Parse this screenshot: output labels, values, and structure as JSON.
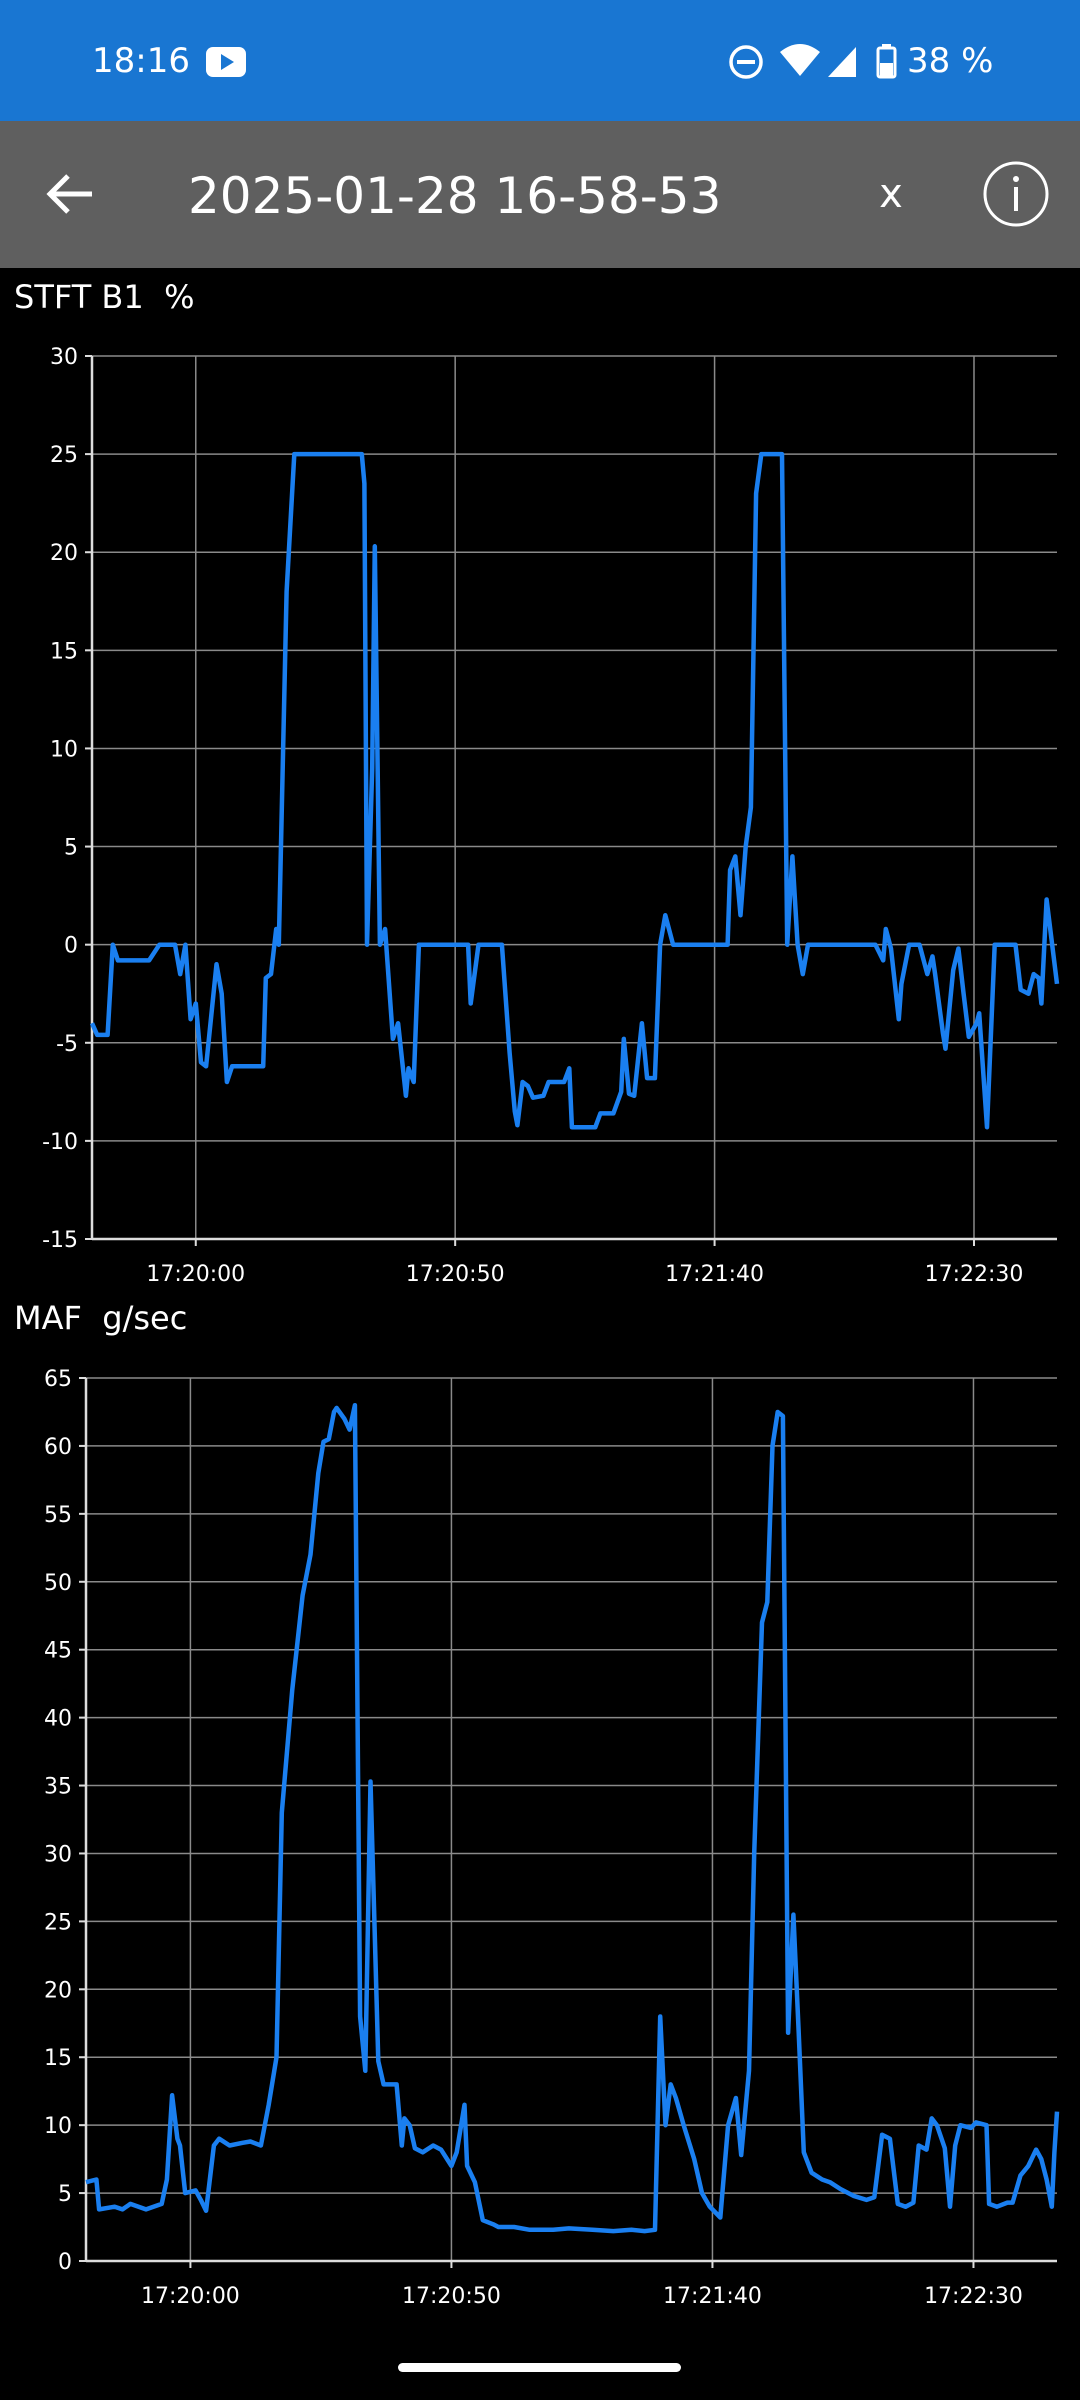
{
  "status_bar": {
    "time": "18:16",
    "battery": "38 %"
  },
  "toolbar": {
    "title": "2025-01-28 16-58-53",
    "close": "x"
  },
  "chart_data": [
    {
      "type": "line",
      "title": "STFT B1  %",
      "x": [
        62380,
        62381,
        62383,
        62384,
        62385,
        62391,
        62393,
        62396,
        62397,
        62398,
        62399,
        62400,
        62401,
        62402,
        62404,
        62405,
        62406,
        62407,
        62413,
        62413.5,
        62414.5,
        62415.5,
        62416,
        62417.5,
        62419,
        62432,
        62432.5,
        62433,
        62434,
        62434.5,
        62435.5,
        62436.5,
        62438,
        62439,
        62440.5,
        62441,
        62442,
        62443,
        62452.5,
        62453,
        62454.5,
        62459,
        62460.5,
        62461.5,
        62462,
        62463,
        62464,
        62465,
        62467,
        62468,
        62471,
        62472,
        62472.5,
        62477,
        62478,
        62480.5,
        62482,
        62482.5,
        62483.5,
        62484.5,
        62486,
        62487,
        62488.5,
        62489.5,
        62490.5,
        62492,
        62502.5,
        62503,
        62504,
        62505,
        62506,
        62507,
        62508,
        62509,
        62513,
        62514,
        62515,
        62516,
        62517,
        62518,
        62531,
        62532.5,
        62533,
        62534,
        62535.5,
        62536,
        62537.5,
        62539.5,
        62541,
        62542,
        62542.5,
        62544,
        62544.5,
        62546,
        62547,
        62548,
        62549,
        62550.5,
        62551,
        62552.5,
        62554,
        62558,
        62559,
        62560.5,
        62561.5,
        62562.5,
        62563,
        62564,
        62566
      ],
      "series": [
        {
          "color": "#1a7ff0",
          "values": [
            -4,
            -4.6,
            -4.6,
            0,
            -0.8,
            -0.8,
            0,
            0,
            -1.5,
            0,
            -3.8,
            -3,
            -6,
            -6.2,
            -1,
            -2.5,
            -7,
            -6.2,
            -6.2,
            -1.7,
            -1.5,
            0.8,
            0,
            18,
            25,
            25,
            23.5,
            0,
            9,
            20.3,
            0,
            0.8,
            -4.8,
            -4,
            -7.7,
            -6.3,
            -7,
            0,
            0,
            -3,
            0,
            0,
            -5.5,
            -8.5,
            -9.2,
            -7,
            -7.2,
            -7.8,
            -7.7,
            -7,
            -7,
            -6.3,
            -9.3,
            -9.3,
            -8.6,
            -8.6,
            -7.5,
            -4.8,
            -7.6,
            -7.7,
            -4,
            -6.8,
            -6.8,
            0,
            1.5,
            0,
            0,
            3.8,
            4.5,
            1.5,
            5,
            7,
            23,
            25,
            25,
            0,
            4.5,
            0,
            -1.5,
            0,
            0,
            -0.8,
            0.8,
            -0.2,
            -3.8,
            -2,
            0,
            0,
            -1.5,
            -0.6,
            -1.5,
            -4.5,
            -5.3,
            -1.3,
            -0.2,
            -2.5,
            -4.7,
            -4,
            -3.5,
            -9.3,
            0,
            0,
            -2.3,
            -2.5,
            -1.5,
            -1.7,
            -3,
            2.3,
            -2
          ]
        }
      ],
      "xlim": [
        62380,
        62566
      ],
      "xticks": [
        {
          "value": 62400,
          "label": "17:20:00"
        },
        {
          "value": 62450,
          "label": "17:20:50"
        },
        {
          "value": 62500,
          "label": "17:21:40"
        },
        {
          "value": 62550,
          "label": "17:22:30"
        }
      ],
      "ylim": [
        -15,
        30
      ],
      "yticks": [
        -15,
        -10,
        -5,
        0,
        5,
        10,
        15,
        20,
        25,
        30
      ],
      "grid": true
    },
    {
      "type": "line",
      "title": "MAF  g/sec",
      "x": [
        62380,
        62382,
        62382.5,
        62385.5,
        62387,
        62388.5,
        62391.5,
        62394.5,
        62395.5,
        62396.5,
        62397.5,
        62398,
        62399,
        62401,
        62402,
        62403,
        62404.5,
        62405.5,
        62407.5,
        62410,
        62411.5,
        62413.5,
        62415,
        62416.5,
        62417.5,
        62419.5,
        62421.5,
        62423,
        62424.5,
        62425.5,
        62426.5,
        62427.5,
        62428,
        62429.5,
        62430.5,
        62431.5,
        62432.5,
        62433.5,
        62434.5,
        62436,
        62437,
        62439.5,
        62440.5,
        62441,
        62442,
        62443,
        62444.5,
        62446.5,
        62448,
        62450,
        62451,
        62452.5,
        62453,
        62454.5,
        62456,
        62458,
        62459,
        62462,
        62465,
        62469.5,
        62472.5,
        62477,
        62481,
        62484.5,
        62487,
        62489,
        62490,
        62491,
        62492,
        62493,
        62494.5,
        62496.5,
        62498,
        62499.5,
        62501.5,
        62503,
        62504.5,
        62505.5,
        62507,
        62508,
        62509.5,
        62510.5,
        62511.5,
        62512.5,
        62513.5,
        62514.5,
        62515.5,
        62516.5,
        62517.5,
        62519,
        62521,
        62522.5,
        62524.5,
        62527,
        62529.5,
        62531,
        62532.5,
        62534,
        62535.5,
        62537,
        62538.5,
        62539.5,
        62541,
        62542,
        62543,
        62544.5,
        62545.5,
        62546.5,
        62547.5,
        62549.5,
        62550.5,
        62552.5,
        62553,
        62554.5,
        62556.5,
        62557.5,
        62559,
        62560.5,
        62562,
        62563,
        62564,
        62565,
        62565.5,
        62566
      ],
      "series": [
        {
          "color": "#1a7ff0",
          "values": [
            5.8,
            6,
            3.8,
            4,
            3.8,
            4.2,
            3.8,
            4.2,
            6,
            12.2,
            9,
            8.5,
            5,
            5.2,
            4.5,
            3.7,
            8.5,
            9,
            8.5,
            8.7,
            8.8,
            8.5,
            11.5,
            15,
            33,
            42,
            49,
            52,
            58,
            60.3,
            60.5,
            62.5,
            62.8,
            62,
            61.2,
            63,
            18,
            14,
            35.3,
            14.7,
            13,
            13,
            8.5,
            10.5,
            10,
            8.3,
            8,
            8.5,
            8.2,
            7,
            8,
            11.5,
            7,
            5.8,
            3,
            2.7,
            2.5,
            2.5,
            2.3,
            2.3,
            2.4,
            2.3,
            2.2,
            2.3,
            2.2,
            2.3,
            18,
            10,
            13,
            12,
            10,
            7.5,
            5,
            4,
            3.2,
            10,
            12,
            7.8,
            14,
            30,
            47,
            48.5,
            60,
            62.5,
            62.2,
            16.8,
            25.5,
            17,
            8,
            6.5,
            6,
            5.8,
            5.3,
            4.8,
            4.5,
            4.7,
            9.3,
            9,
            4.2,
            4,
            4.3,
            8.5,
            8.2,
            10.5,
            10,
            8.3,
            4,
            8.5,
            10,
            9.8,
            10.2,
            10,
            4.2,
            4,
            4.3,
            4.3,
            6.3,
            7,
            8.2,
            7.5,
            6,
            4,
            8,
            11
          ]
        }
      ],
      "xlim": [
        62380,
        62566
      ],
      "xticks": [
        {
          "value": 62400,
          "label": "17:20:00"
        },
        {
          "value": 62450,
          "label": "17:20:50"
        },
        {
          "value": 62500,
          "label": "17:21:40"
        },
        {
          "value": 62550,
          "label": "17:22:30"
        }
      ],
      "ylim": [
        0,
        65
      ],
      "yticks": [
        0,
        5,
        10,
        15,
        20,
        25,
        30,
        35,
        40,
        45,
        50,
        55,
        60,
        65
      ],
      "grid": true
    }
  ]
}
